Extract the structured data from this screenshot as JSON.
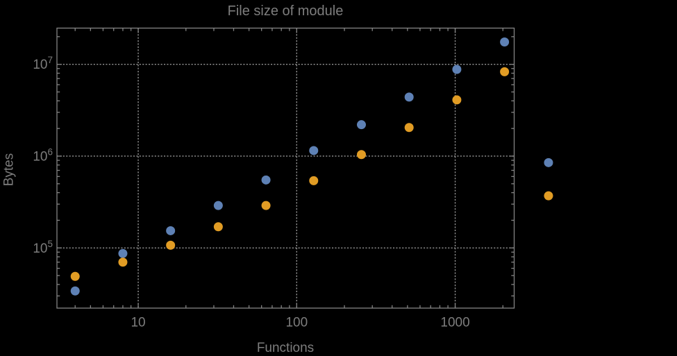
{
  "chart_data": {
    "type": "scatter",
    "title": "File size of module",
    "xlabel": "Functions",
    "ylabel": "Bytes",
    "x_scale": "log",
    "y_scale": "log",
    "xlim": [
      3.07,
      2356
    ],
    "ylim": [
      22100,
      24800000
    ],
    "grid": "dotted",
    "legend": "none",
    "x_ticks": [
      {
        "value": 10,
        "label": "10"
      },
      {
        "value": 100,
        "label": "100"
      },
      {
        "value": 1000,
        "label": "1000"
      }
    ],
    "y_ticks": [
      {
        "value": 100000,
        "label": "10^5",
        "base": "10",
        "exponent": "5"
      },
      {
        "value": 1000000,
        "label": "10^6",
        "base": "10",
        "exponent": "6"
      },
      {
        "value": 10000000,
        "label": "10^7",
        "base": "10",
        "exponent": "7"
      }
    ],
    "series": [
      {
        "name": "blue",
        "color": "#5E81B5",
        "marker": "circle",
        "points": [
          [
            4,
            34000
          ],
          [
            8,
            87000
          ],
          [
            16,
            154000
          ],
          [
            32,
            290000
          ],
          [
            64,
            550000
          ],
          [
            128,
            1150000
          ],
          [
            256,
            2200000
          ],
          [
            512,
            4400000
          ],
          [
            1024,
            8800000
          ],
          [
            2048,
            17500000
          ],
          [
            3880,
            850000
          ]
        ]
      },
      {
        "name": "orange",
        "color": "#E19C24",
        "marker": "circle",
        "points": [
          [
            4,
            49000
          ],
          [
            8,
            70000
          ],
          [
            16,
            107000
          ],
          [
            32,
            170000
          ],
          [
            64,
            290000
          ],
          [
            128,
            540000
          ],
          [
            256,
            1040000
          ],
          [
            512,
            2050000
          ],
          [
            1024,
            4100000
          ],
          [
            2048,
            8300000
          ],
          [
            3880,
            370000
          ]
        ]
      }
    ]
  },
  "colors": {
    "background": "#000000",
    "frame": "#848484",
    "grid": "#969696",
    "tick_label": "#7d7d7d",
    "title": "#7d7d7d",
    "axis_label": "#7d7d7d"
  }
}
